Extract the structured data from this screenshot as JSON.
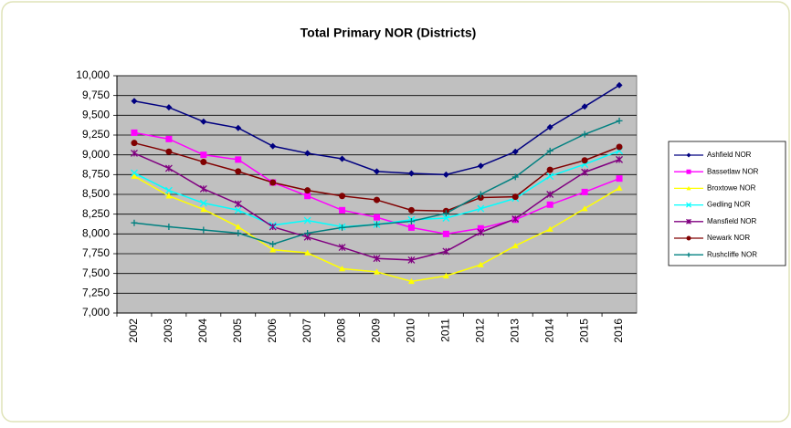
{
  "chart_data": {
    "type": "line",
    "title": "Total Primary NOR (Districts)",
    "categories": [
      "2002",
      "2003",
      "2004",
      "2005",
      "2006",
      "2007",
      "2008",
      "2009",
      "2010",
      "2011",
      "2012",
      "2013",
      "2014",
      "2015",
      "2016"
    ],
    "ylim": [
      7000,
      10000
    ],
    "yticks": [
      {
        "value": 7000,
        "label": "7,000"
      },
      {
        "value": 7250,
        "label": "7,250"
      },
      {
        "value": 7500,
        "label": "7,500"
      },
      {
        "value": 7750,
        "label": "7,750"
      },
      {
        "value": 8000,
        "label": "8,000"
      },
      {
        "value": 8250,
        "label": "8,250"
      },
      {
        "value": 8500,
        "label": "8,500"
      },
      {
        "value": 8750,
        "label": "8,750"
      },
      {
        "value": 9000,
        "label": "9,000"
      },
      {
        "value": 9250,
        "label": "9,250"
      },
      {
        "value": 9500,
        "label": "9,500"
      },
      {
        "value": 9750,
        "label": "9,750"
      },
      {
        "value": 10000,
        "label": "10,000"
      }
    ],
    "grid": true,
    "legend": "right",
    "series": [
      {
        "name": "Ashfield NOR",
        "color": "#000080",
        "marker": "diamond",
        "values": [
          9680,
          9600,
          9420,
          9340,
          9110,
          9020,
          8950,
          8790,
          8765,
          8750,
          8860,
          9040,
          9350,
          9610,
          9880
        ]
      },
      {
        "name": "Bassetlaw NOR",
        "color": "#ff00ff",
        "marker": "square",
        "values": [
          9280,
          9200,
          9000,
          8940,
          8650,
          8480,
          8300,
          8210,
          8080,
          8000,
          8070,
          8180,
          8370,
          8530,
          8700
        ]
      },
      {
        "name": "Broxtowe NOR",
        "color": "#ffff00",
        "marker": "triangle",
        "values": [
          8730,
          8480,
          8310,
          8090,
          7800,
          7760,
          7560,
          7520,
          7400,
          7470,
          7610,
          7850,
          8060,
          8320,
          8580
        ]
      },
      {
        "name": "Gedling NOR",
        "color": "#00ffff",
        "marker": "x",
        "values": [
          8770,
          8550,
          8390,
          8300,
          8110,
          8170,
          8090,
          8120,
          8180,
          8200,
          8320,
          8450,
          8730,
          8880,
          9050
        ]
      },
      {
        "name": "Mansfield NOR",
        "color": "#800080",
        "marker": "star",
        "values": [
          9020,
          8830,
          8570,
          8380,
          8090,
          7960,
          7830,
          7690,
          7670,
          7780,
          8020,
          8190,
          8500,
          8780,
          8940
        ]
      },
      {
        "name": "Newark NOR",
        "color": "#800000",
        "marker": "circle",
        "values": [
          9150,
          9040,
          8910,
          8790,
          8650,
          8550,
          8480,
          8430,
          8300,
          8290,
          8460,
          8470,
          8810,
          8930,
          9100
        ]
      },
      {
        "name": "Rushcliffe NOR",
        "color": "#008080",
        "marker": "plus",
        "values": [
          8140,
          8090,
          8050,
          8010,
          7870,
          8010,
          8080,
          8120,
          8160,
          8260,
          8500,
          8720,
          9050,
          9260,
          9430
        ]
      }
    ]
  }
}
